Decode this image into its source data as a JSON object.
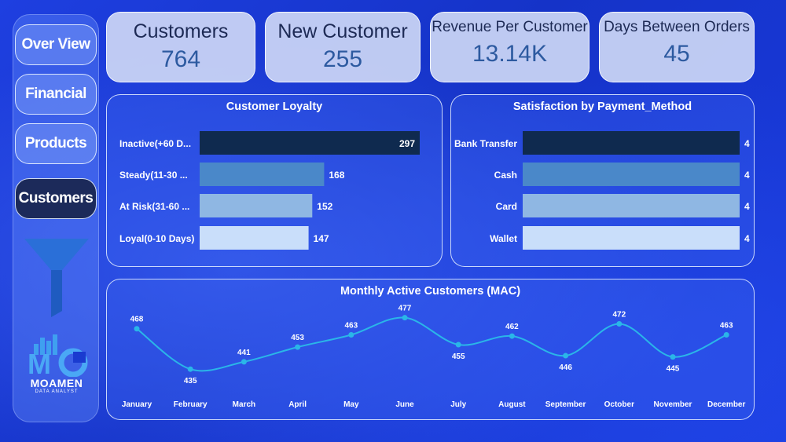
{
  "nav": {
    "items": [
      {
        "label": "Over View",
        "active": false
      },
      {
        "label": "Financial",
        "active": false
      },
      {
        "label": "Products",
        "active": false
      },
      {
        "label": "Customers",
        "active": true
      }
    ]
  },
  "logo": {
    "name": "MOAMEN",
    "subtitle": "DATA ANALYST"
  },
  "kpis": {
    "customers": {
      "title": "Customers",
      "value": "764"
    },
    "new_customer": {
      "title": "New Customer",
      "value": "255"
    },
    "revenue_per_customer": {
      "title": "Revenue Per Customer",
      "value": "13.14K"
    },
    "days_between_orders": {
      "title": "Days Between Orders",
      "value": "45"
    }
  },
  "colors": {
    "background": "#1636d6",
    "dark_bar": "#0f2a4f",
    "mid_bar": "#4a88c9",
    "light_bar": "#8fb7e3",
    "lightest_bar": "#c9defa",
    "line": "#2ab6e8"
  },
  "chart_data": [
    {
      "type": "bar",
      "orientation": "horizontal",
      "title": "Customer Loyalty",
      "categories": [
        "Inactive(+60 D...",
        "Steady(11-30 ...",
        "At Risk(31-60 ...",
        "Loyal(0-10 Days)"
      ],
      "values": [
        297,
        168,
        152,
        147
      ],
      "xlim": [
        0,
        297
      ]
    },
    {
      "type": "bar",
      "orientation": "horizontal",
      "title": "Satisfaction by Payment_Method",
      "categories": [
        "Bank Transfer",
        "Cash",
        "Card",
        "Wallet"
      ],
      "values": [
        4,
        4,
        4,
        4
      ],
      "xlim": [
        0,
        4
      ]
    },
    {
      "type": "line",
      "title": "Monthly Active Customers (MAC)",
      "categories": [
        "January",
        "February",
        "March",
        "April",
        "May",
        "June",
        "July",
        "August",
        "September",
        "October",
        "November",
        "December"
      ],
      "values": [
        468,
        435,
        441,
        453,
        463,
        477,
        455,
        462,
        446,
        472,
        445,
        463
      ],
      "ylim": [
        430,
        480
      ]
    }
  ]
}
